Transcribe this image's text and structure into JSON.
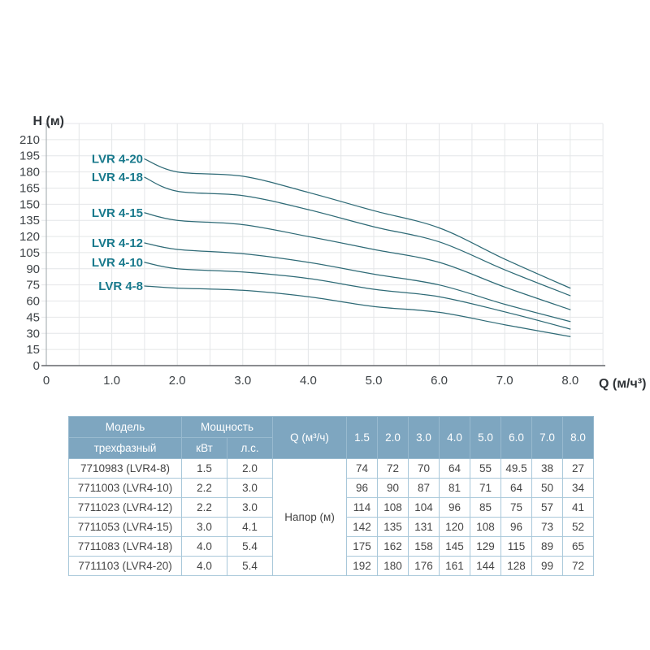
{
  "page": {
    "background": "#ffffff"
  },
  "chart_data": {
    "type": "line",
    "title": "",
    "xlabel": "Q (м/ч³)",
    "ylabel": "H (м)",
    "x": [
      1.5,
      2.0,
      3.0,
      4.0,
      5.0,
      6.0,
      7.0,
      8.0
    ],
    "series": [
      {
        "name": "LVR 4-20",
        "values": [
          192,
          180,
          176,
          161,
          144,
          128,
          99,
          72
        ]
      },
      {
        "name": "LVR 4-18",
        "values": [
          175,
          162,
          158,
          145,
          129,
          115,
          89,
          65
        ]
      },
      {
        "name": "LVR 4-15",
        "values": [
          142,
          135,
          131,
          120,
          108,
          96,
          73,
          52
        ]
      },
      {
        "name": "LVR 4-12",
        "values": [
          114,
          108,
          104,
          96,
          85,
          75,
          57,
          41
        ]
      },
      {
        "name": "LVR 4-10",
        "values": [
          96,
          90,
          87,
          81,
          71,
          64,
          50,
          34
        ]
      },
      {
        "name": "LVR 4-8",
        "values": [
          74,
          72,
          70,
          64,
          55,
          49.5,
          38,
          27
        ]
      }
    ],
    "xlim": [
      0,
      8.5
    ],
    "ylim": [
      0,
      225
    ],
    "x_ticks": [
      "0",
      "1.0",
      "2.0",
      "3.0",
      "4.0",
      "5.0",
      "6.0",
      "7.0",
      "8.0"
    ],
    "y_tick_step": 15,
    "x_grid_step": 0.5,
    "grid": true,
    "legend_position": "inline-labels-left"
  },
  "table": {
    "header": {
      "model_top": "Модель",
      "model_bottom": "трехфазный",
      "power": "Мощность",
      "power_kw": "кВт",
      "power_hp": "л.с.",
      "q_label": "Q (м³/ч)",
      "q_values": [
        "1.5",
        "2.0",
        "3.0",
        "4.0",
        "5.0",
        "6.0",
        "7.0",
        "8.0"
      ]
    },
    "head_label": "Напор (м)",
    "rows": [
      {
        "model": "7710983 (LVR4-8)",
        "kw": "1.5",
        "hp": "2.0",
        "values": [
          "74",
          "72",
          "70",
          "64",
          "55",
          "49.5",
          "38",
          "27"
        ]
      },
      {
        "model": "7711003 (LVR4-10)",
        "kw": "2.2",
        "hp": "3.0",
        "values": [
          "96",
          "90",
          "87",
          "81",
          "71",
          "64",
          "50",
          "34"
        ]
      },
      {
        "model": "7711023 (LVR4-12)",
        "kw": "2.2",
        "hp": "3.0",
        "values": [
          "114",
          "108",
          "104",
          "96",
          "85",
          "75",
          "57",
          "41"
        ]
      },
      {
        "model": "7711053 (LVR4-15)",
        "kw": "3.0",
        "hp": "4.1",
        "values": [
          "142",
          "135",
          "131",
          "120",
          "108",
          "96",
          "73",
          "52"
        ]
      },
      {
        "model": "7711083 (LVR4-18)",
        "kw": "4.0",
        "hp": "5.4",
        "values": [
          "175",
          "162",
          "158",
          "145",
          "129",
          "115",
          "89",
          "65"
        ]
      },
      {
        "model": "7711103 (LVR4-20)",
        "kw": "4.0",
        "hp": "5.4",
        "values": [
          "192",
          "180",
          "176",
          "161",
          "144",
          "128",
          "99",
          "72"
        ]
      }
    ]
  },
  "colors": {
    "curve": "#2e6a76",
    "curve_label": "#18798c",
    "grid_line": "#e4e6e8",
    "x_axis_line": "#63676b",
    "y_axis_line": "#aeb3b8",
    "tick_text": "#3e4347",
    "axis_title_text": "#2f3337",
    "header_bg": "#7ea6c0",
    "header_text": "#ffffff",
    "table_border": "#9dbcd0",
    "body_text": "#454545"
  }
}
